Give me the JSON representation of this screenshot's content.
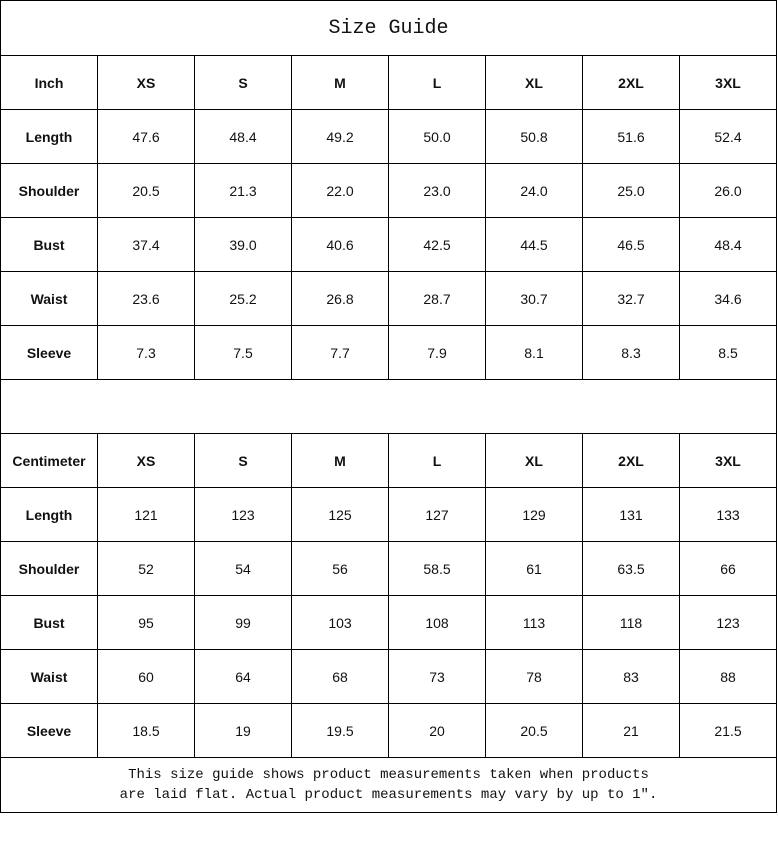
{
  "title": "Size Guide",
  "sizes": [
    "XS",
    "S",
    "M",
    "L",
    "XL",
    "2XL",
    "3XL"
  ],
  "inch": {
    "unit_label": "Inch",
    "rows": [
      {
        "label": "Length",
        "values": [
          "47.6",
          "48.4",
          "49.2",
          "50.0",
          "50.8",
          "51.6",
          "52.4"
        ]
      },
      {
        "label": "Shoulder",
        "values": [
          "20.5",
          "21.3",
          "22.0",
          "23.0",
          "24.0",
          "25.0",
          "26.0"
        ]
      },
      {
        "label": "Bust",
        "values": [
          "37.4",
          "39.0",
          "40.6",
          "42.5",
          "44.5",
          "46.5",
          "48.4"
        ]
      },
      {
        "label": "Waist",
        "values": [
          "23.6",
          "25.2",
          "26.8",
          "28.7",
          "30.7",
          "32.7",
          "34.6"
        ]
      },
      {
        "label": "Sleeve",
        "values": [
          "7.3",
          "7.5",
          "7.7",
          "7.9",
          "8.1",
          "8.3",
          "8.5"
        ]
      }
    ]
  },
  "cm": {
    "unit_label": "Centimeter",
    "rows": [
      {
        "label": "Length",
        "values": [
          "121",
          "123",
          "125",
          "127",
          "129",
          "131",
          "133"
        ]
      },
      {
        "label": "Shoulder",
        "values": [
          "52",
          "54",
          "56",
          "58.5",
          "61",
          "63.5",
          "66"
        ]
      },
      {
        "label": "Bust",
        "values": [
          "95",
          "99",
          "103",
          "108",
          "113",
          "118",
          "123"
        ]
      },
      {
        "label": "Waist",
        "values": [
          "60",
          "64",
          "68",
          "73",
          "78",
          "83",
          "88"
        ]
      },
      {
        "label": "Sleeve",
        "values": [
          "18.5",
          "19",
          "19.5",
          "20",
          "20.5",
          "21",
          "21.5"
        ]
      }
    ]
  },
  "footer": {
    "line1": "This size guide shows product measurements taken when products",
    "line2": "are laid flat. Actual product measurements may vary by up to 1″."
  }
}
